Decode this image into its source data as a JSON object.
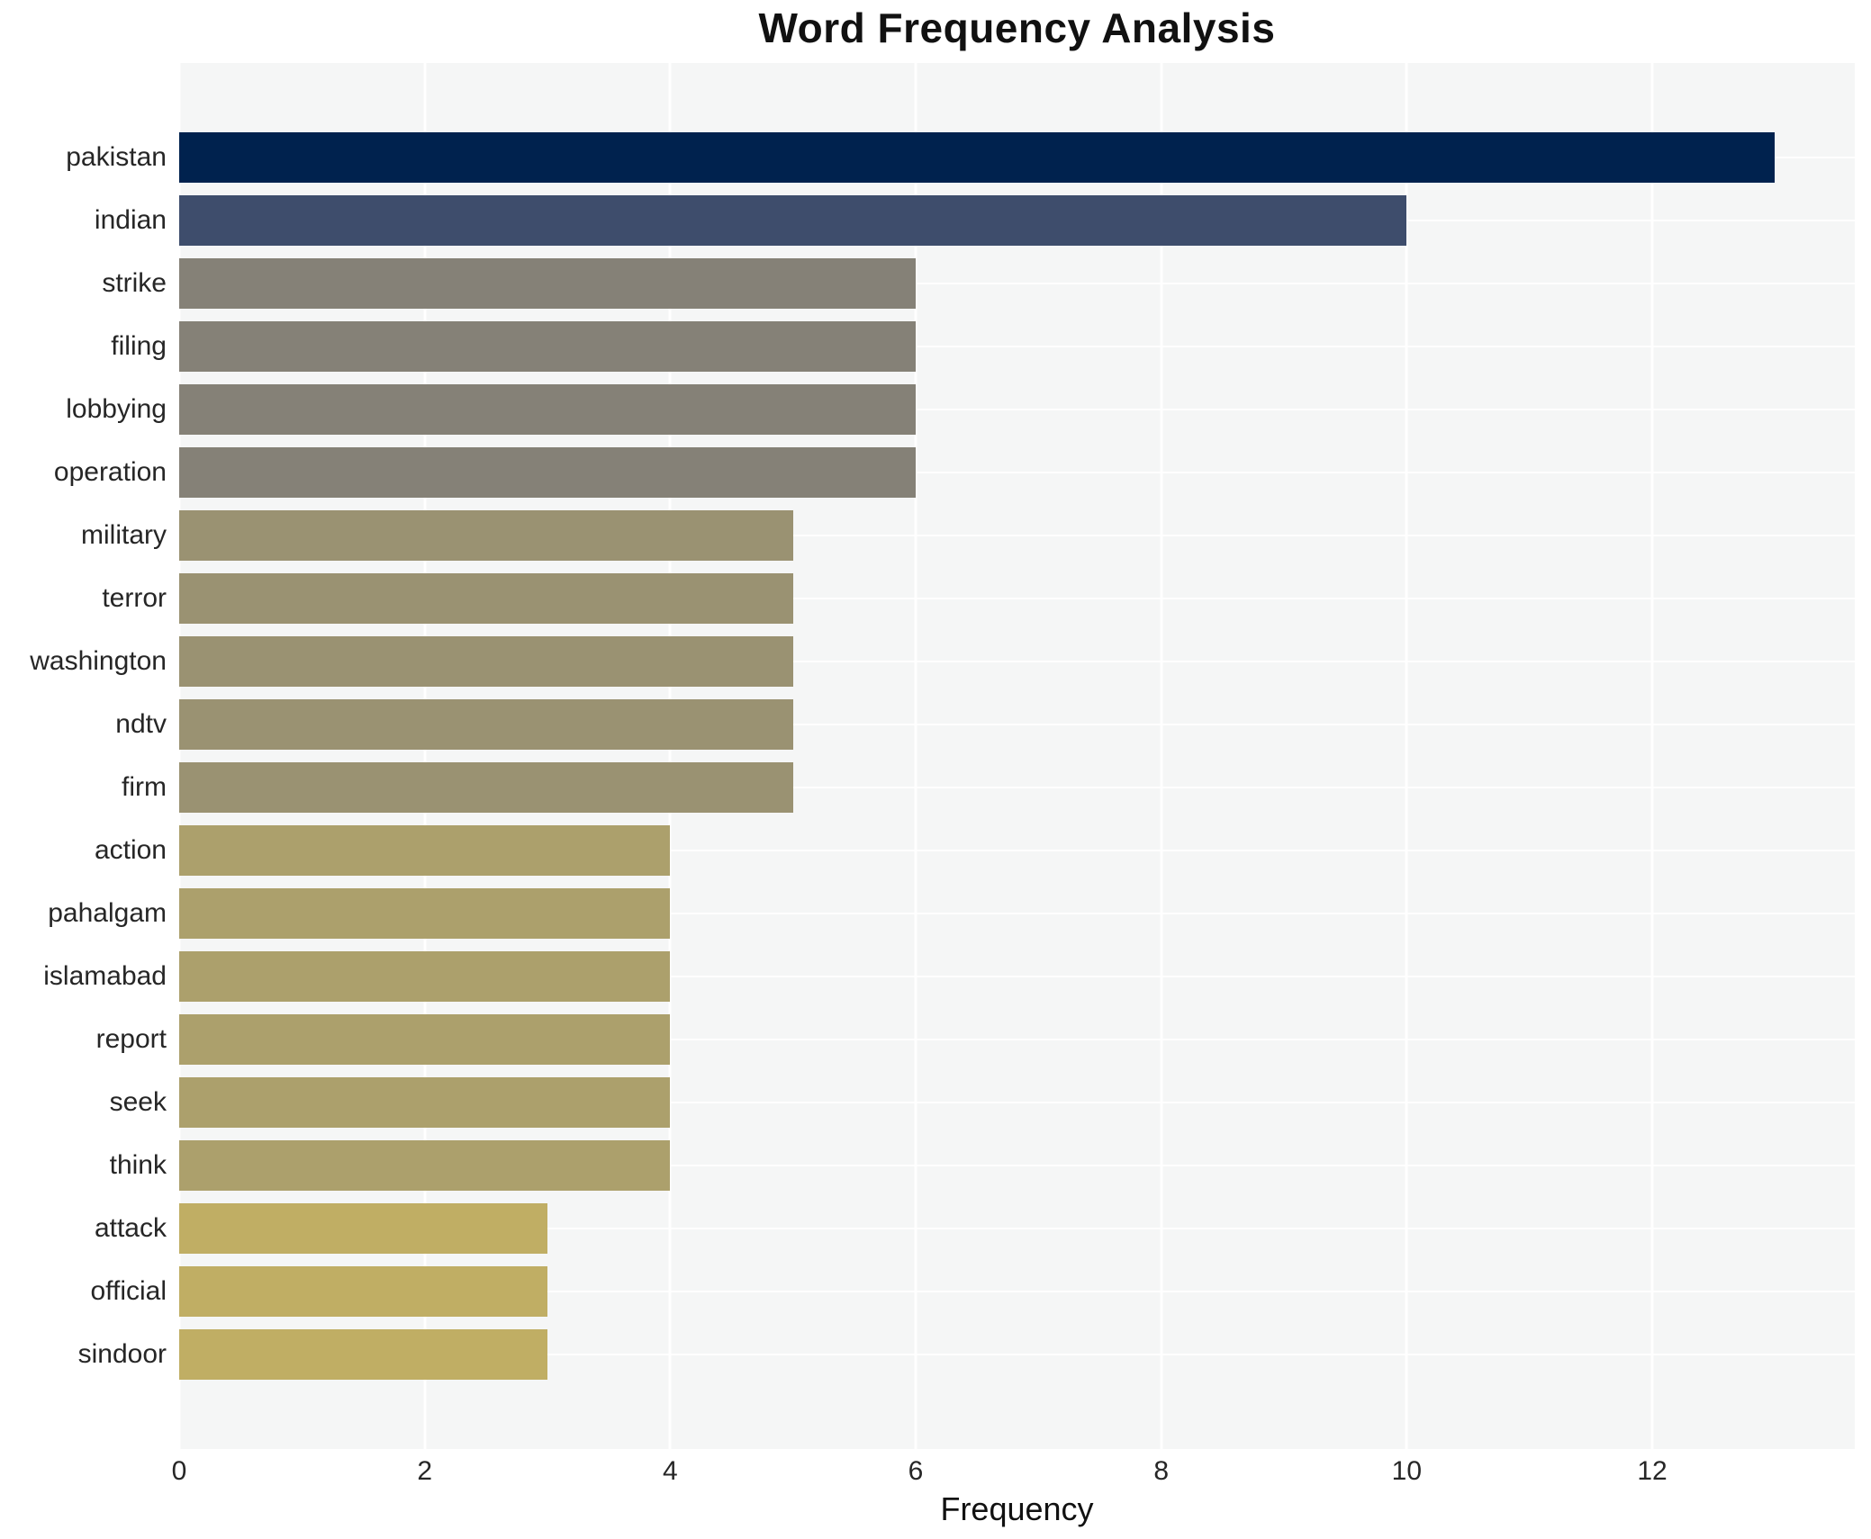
{
  "chart_data": {
    "type": "bar",
    "orientation": "horizontal",
    "title": "Word Frequency Analysis",
    "xlabel": "Frequency",
    "ylabel": "",
    "categories": [
      "pakistan",
      "indian",
      "strike",
      "filing",
      "lobbying",
      "operation",
      "military",
      "terror",
      "washington",
      "ndtv",
      "firm",
      "action",
      "pahalgam",
      "islamabad",
      "report",
      "seek",
      "think",
      "attack",
      "official",
      "sindoor"
    ],
    "values": [
      13,
      10,
      6,
      6,
      6,
      6,
      5,
      5,
      5,
      5,
      5,
      4,
      4,
      4,
      4,
      4,
      4,
      3,
      3,
      3
    ],
    "colors": [
      "#00224e",
      "#3e4d6c",
      "#858177",
      "#858177",
      "#858177",
      "#858177",
      "#9a9272",
      "#9a9272",
      "#9a9272",
      "#9a9272",
      "#9a9272",
      "#aca06c",
      "#aca06c",
      "#aca06c",
      "#aca06c",
      "#aca06c",
      "#aca06c",
      "#c0ae64",
      "#c0ae64",
      "#c0ae64"
    ],
    "x_ticks": [
      0,
      2,
      4,
      6,
      8,
      10,
      12
    ],
    "xlim": [
      0,
      13.65
    ],
    "grid": "white gridlines on light gray panel, vertical at even values, horizontal at category centers",
    "legend": "none",
    "colors_meta": {
      "plot_background": "#f5f6f6",
      "figure_background": "#ffffff",
      "grid_color": "#ffffff",
      "tick_text_color": "#262626",
      "title_color": "#111111"
    }
  }
}
